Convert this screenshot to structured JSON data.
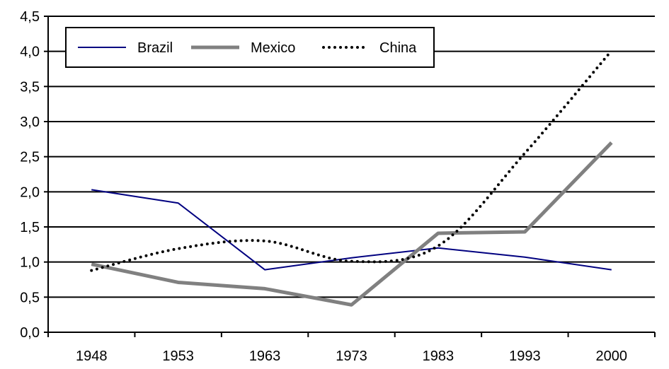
{
  "chart_data": {
    "type": "line",
    "title": "",
    "xlabel": "",
    "ylabel": "",
    "categories": [
      "1948",
      "1953",
      "1963",
      "1973",
      "1983",
      "1993",
      "2000"
    ],
    "ylim": [
      0,
      4.5
    ],
    "yticks": [
      0,
      0.5,
      1,
      1.5,
      2,
      2.5,
      3,
      3.5,
      4,
      4.5
    ],
    "ytick_labels": [
      "0,0",
      "0,5",
      "1,0",
      "1,5",
      "2,0",
      "2,5",
      "3,0",
      "3,5",
      "4,0",
      "4,5"
    ],
    "grid": "horizontal",
    "legend_position": "top-left",
    "series": [
      {
        "name": "Brazil",
        "values": [
          2.03,
          1.84,
          0.89,
          1.06,
          1.2,
          1.07,
          0.89
        ],
        "color": "#000080",
        "style": "thin-solid"
      },
      {
        "name": "Mexico",
        "values": [
          0.97,
          0.71,
          0.62,
          0.39,
          1.41,
          1.43,
          2.7
        ],
        "color": "#808080",
        "style": "thick-solid"
      },
      {
        "name": "China",
        "values": [
          0.88,
          1.19,
          1.3,
          1.01,
          1.23,
          2.55,
          4.01
        ],
        "color": "#000000",
        "style": "dotted"
      }
    ]
  }
}
